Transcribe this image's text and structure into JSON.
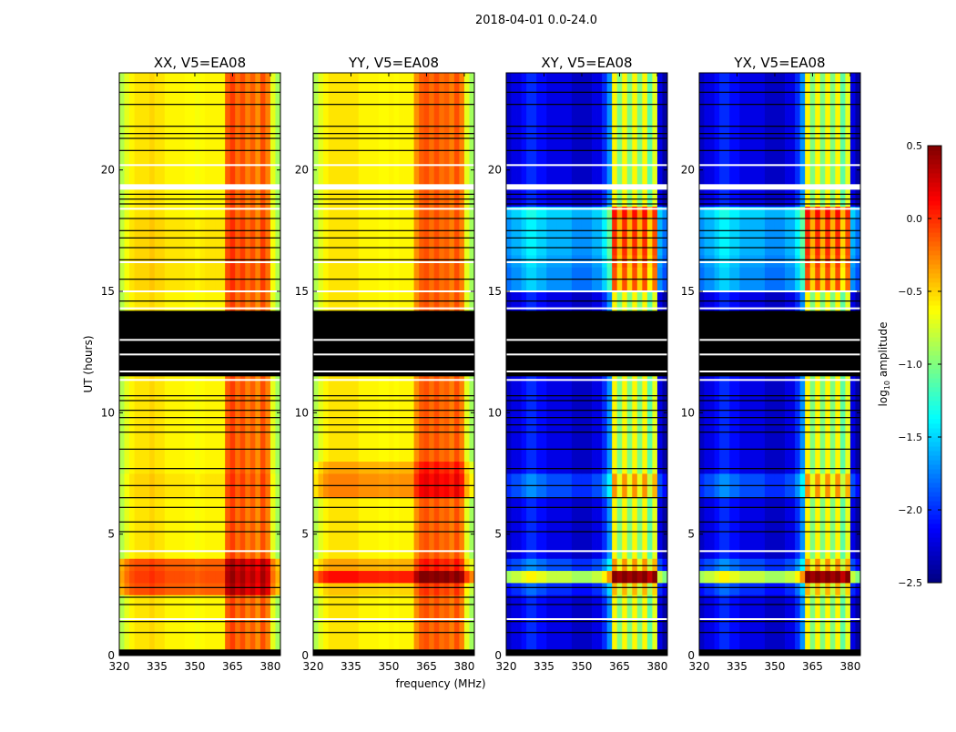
{
  "chart_data": {
    "type": "heatmap",
    "title": "2018-04-01 0.0-24.0",
    "xlabel": "frequency (MHz)",
    "ylabel": "UT (hours)",
    "xlim": [
      320,
      384
    ],
    "ylim": [
      0,
      24
    ],
    "xticks": [
      "320",
      "335",
      "350",
      "365",
      "380"
    ],
    "xtick_values": [
      320,
      335,
      350,
      365,
      380
    ],
    "yticks": [
      "0",
      "5",
      "10",
      "15",
      "20"
    ],
    "ytick_values": [
      0,
      5,
      10,
      15,
      20
    ],
    "freq_bin_mhz": 2,
    "time_bin_hours": 0.5,
    "colorbar": {
      "label": "log10 amplitude",
      "label_main": "log",
      "label_sub": "10",
      "label_rest": " amplitude",
      "range": [
        -2.5,
        0.5
      ],
      "colormap": "jet",
      "ticks": [
        "0.5",
        "0.0",
        "−0.5",
        "−1.0",
        "−1.5",
        "−2.0",
        "−2.5"
      ],
      "tick_values": [
        0.5,
        0.0,
        -0.5,
        -1.0,
        -1.5,
        -2.0,
        -2.5
      ]
    },
    "masked_ranges_hours": [
      [
        0,
        0.25
      ],
      [
        11.5,
        14.2
      ]
    ],
    "flagged_rows_black_hours": [
      0.95,
      1.4,
      2.1,
      2.4,
      2.8,
      3.7,
      5.1,
      5.5,
      6.1,
      6.5,
      7.0,
      7.7,
      8.5,
      9.2,
      9.5,
      9.8,
      10.1,
      10.5,
      10.7,
      14.6,
      15.5,
      16.3,
      16.8,
      17.2,
      17.5,
      18.0,
      18.6,
      18.8,
      19.0,
      20.8,
      21.3,
      21.5,
      21.8,
      22.7,
      23.2,
      23.6
    ],
    "gap_rows_white_hours": [
      1.5,
      4.3,
      11.35,
      11.7,
      12.4,
      13.0,
      14.3,
      15.0,
      16.2,
      18.4,
      19.3,
      20.2
    ],
    "panels": [
      {
        "title": "XX, V5=EA08",
        "freq_profile": [
          -0.85,
          -0.7,
          -0.6,
          -0.55,
          -0.55,
          -0.55,
          -0.5,
          -0.55,
          -0.55,
          -0.6,
          -0.6,
          -0.6,
          -0.6,
          -0.62,
          -0.62,
          -0.65,
          -0.62,
          -0.6,
          -0.6,
          -0.6,
          -0.6,
          -0.15,
          -0.05,
          -0.2,
          -0.1,
          -0.25,
          -0.15,
          -0.3,
          -0.1,
          -0.25,
          -0.7,
          -0.9
        ],
        "time_offsets": [
          0,
          0,
          0,
          0,
          0,
          0.45,
          0.5,
          0.45,
          0,
          0,
          0,
          0,
          0,
          0.05,
          0.05,
          0,
          0,
          0,
          0,
          0,
          0,
          0,
          0,
          0,
          0,
          0,
          0,
          0,
          0,
          0,
          0.05,
          0.05,
          0.05,
          0.05,
          0.05,
          0.05,
          0,
          0,
          0,
          0,
          0,
          0,
          0,
          0,
          0,
          0,
          0,
          0
        ]
      },
      {
        "title": "YY, V5=EA08",
        "freq_profile": [
          -0.85,
          -0.7,
          -0.6,
          -0.55,
          -0.55,
          -0.55,
          -0.55,
          -0.55,
          -0.55,
          -0.6,
          -0.6,
          -0.6,
          -0.6,
          -0.62,
          -0.62,
          -0.6,
          -0.62,
          -0.6,
          -0.6,
          -0.6,
          -0.3,
          -0.15,
          -0.1,
          -0.2,
          -0.1,
          -0.2,
          -0.15,
          -0.25,
          -0.1,
          -0.25,
          -0.7,
          -0.9
        ],
        "time_offsets": [
          0,
          0,
          0,
          0,
          0,
          0.1,
          0.65,
          0.2,
          0,
          0,
          0,
          0,
          0,
          0.3,
          0.3,
          0.2,
          0,
          0,
          0,
          0,
          0,
          0,
          0,
          0,
          0,
          0,
          0,
          0,
          0,
          0,
          0,
          0,
          0,
          0,
          0,
          0,
          0,
          0,
          0,
          0,
          0,
          0,
          0,
          0,
          0,
          0,
          0,
          0
        ]
      },
      {
        "title": "XY, V5=EA08",
        "freq_profile": [
          -2.3,
          -2.2,
          -2.2,
          -2.1,
          -2.0,
          -2.0,
          -2.1,
          -2.1,
          -2.2,
          -2.2,
          -2.2,
          -2.2,
          -2.2,
          -2.3,
          -2.3,
          -2.3,
          -2.3,
          -2.2,
          -2.2,
          -2.0,
          -1.7,
          -0.6,
          -1.0,
          -0.6,
          -1.0,
          -0.6,
          -1.0,
          -0.6,
          -1.1,
          -0.7,
          -2.2,
          -2.4
        ],
        "time_offsets": [
          0,
          0,
          0,
          0,
          0,
          0.2,
          1.4,
          0.3,
          0,
          0,
          0,
          0,
          0,
          0.3,
          0.3,
          0,
          0,
          0,
          0,
          0,
          0,
          0,
          0,
          0,
          0,
          0,
          0,
          0,
          0,
          0,
          0.5,
          0.5,
          0.55,
          0.6,
          0.6,
          0.6,
          0.7,
          0,
          0,
          0,
          0,
          0,
          0,
          0,
          0,
          0,
          0,
          0
        ]
      },
      {
        "title": "YX, V5=EA08",
        "freq_profile": [
          -2.3,
          -2.2,
          -2.2,
          -2.1,
          -2.0,
          -2.0,
          -2.1,
          -2.1,
          -2.2,
          -2.2,
          -2.2,
          -2.2,
          -2.2,
          -2.3,
          -2.3,
          -2.3,
          -2.3,
          -2.2,
          -2.2,
          -2.0,
          -1.7,
          -0.6,
          -1.0,
          -0.6,
          -1.0,
          -0.6,
          -1.0,
          -0.6,
          -1.1,
          -0.7,
          -2.2,
          -2.4
        ],
        "time_offsets": [
          0,
          0,
          0,
          0,
          0,
          0.2,
          1.4,
          0.3,
          0,
          0,
          0,
          0,
          0,
          0.3,
          0.3,
          0,
          0,
          0,
          0,
          0,
          0,
          0,
          0,
          0,
          0,
          0,
          0,
          0,
          0,
          0,
          0.5,
          0.5,
          0.55,
          0.6,
          0.6,
          0.6,
          0.7,
          0,
          0,
          0,
          0,
          0,
          0,
          0,
          0,
          0,
          0,
          0
        ]
      }
    ]
  }
}
